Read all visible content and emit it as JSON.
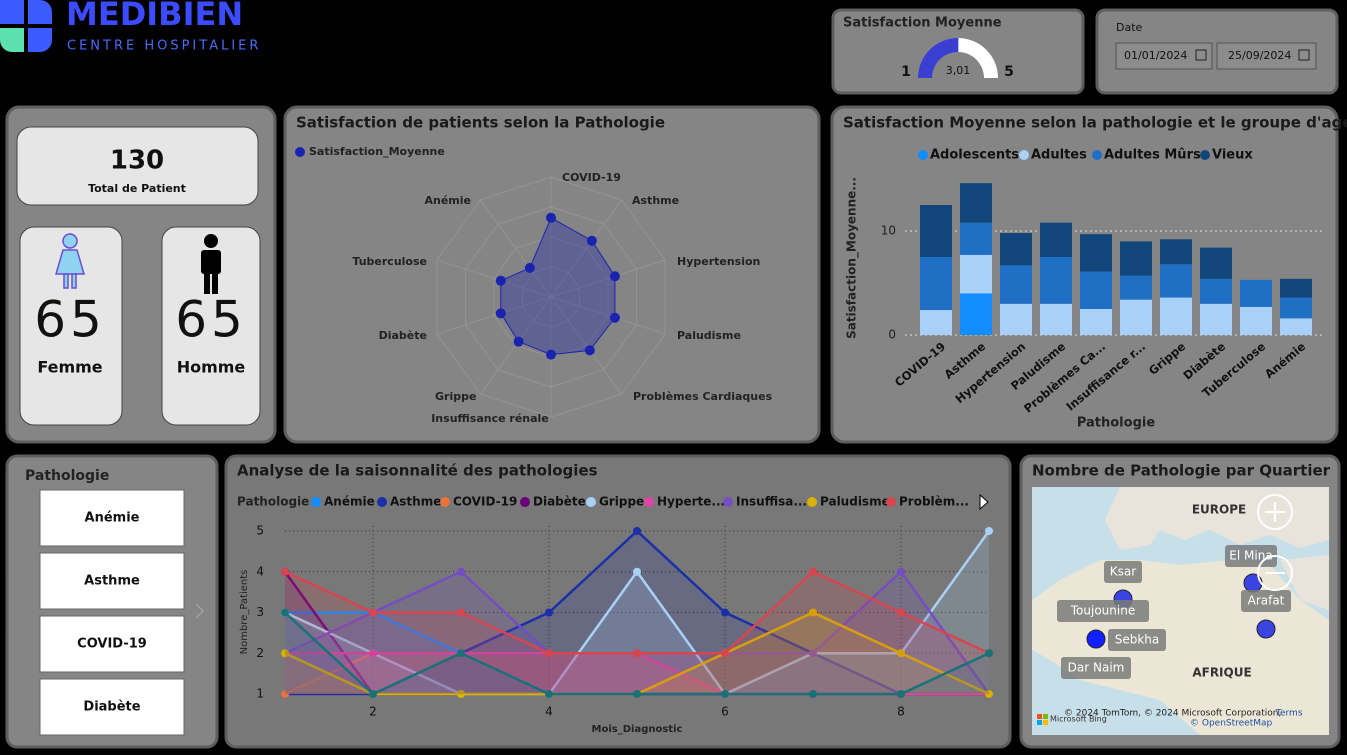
{
  "header": {
    "brand": "MEDIBIEN",
    "subtitle": "CENTRE HOSPITALIER"
  },
  "gauge": {
    "title": "Satisfaction Moyenne",
    "min": 1,
    "max": 5,
    "value": 3.01,
    "value_label": "3,01"
  },
  "date": {
    "label": "Date",
    "start": "01/01/2024",
    "end": "25/09/2024"
  },
  "kpis": {
    "total": {
      "value": 130,
      "label": "Total de Patient"
    },
    "femme": {
      "value": 65,
      "label": "Femme"
    },
    "homme": {
      "value": 65,
      "label": "Homme"
    }
  },
  "slicer": {
    "title": "Pathologie",
    "items": [
      "Anémie",
      "Asthme",
      "COVID-19",
      "Diabète"
    ]
  },
  "map": {
    "title": "Nombre de Pathologie par Quartier",
    "regions": [
      "EUROPE",
      "AFRIQUE"
    ],
    "places": [
      "Ksar",
      "Toujounine",
      "Sebkha",
      "Dar Naim",
      "El Mina",
      "Arafat"
    ],
    "attribution": "© 2024 TomTom, © 2024 Microsoft Corporation,",
    "terms": "Terms",
    "osm": "© OpenStreetMap",
    "provider": "Microsoft Bing"
  },
  "chart_data": [
    {
      "type": "radar",
      "title": "Satisfaction de patients selon la Pathologie",
      "categories": [
        "COVID-19",
        "Asthme",
        "Hypertension",
        "Paludisme",
        "Problèmes Cardiaques",
        "Insuffisance rénale",
        "Grippe",
        "Diabète",
        "Tuberculose",
        "Anémie"
      ],
      "series": [
        {
          "name": "Satisfaction_Moyenne",
          "color": "#1a23b0",
          "values": [
            3.3,
            2.9,
            2.8,
            2.8,
            2.75,
            2.4,
            2.3,
            2.2,
            2.2,
            1.5
          ]
        }
      ],
      "rlim": [
        0,
        5
      ]
    },
    {
      "type": "stacked-bar",
      "title": "Satisfaction Moyenne selon la pathologie et le groupe d'age",
      "categories": [
        "COVID-19",
        "Asthme",
        "Hypertension",
        "Paludisme",
        "Problèmes Ca...",
        "Insuffisance r...",
        "Grippe",
        "Diabète",
        "Tuberculose",
        "Anémie"
      ],
      "series": [
        {
          "name": "Adolescents",
          "color": "#118dff",
          "values": [
            0,
            4.0,
            0,
            0,
            0,
            0,
            0,
            0,
            0,
            0
          ]
        },
        {
          "name": "Adultes",
          "color": "#a9d1f7",
          "values": [
            2.4,
            3.7,
            3.0,
            3.0,
            2.5,
            3.4,
            3.6,
            3.0,
            2.7,
            1.6
          ]
        },
        {
          "name": "Adultes Mûrs",
          "color": "#1f6fc5",
          "values": [
            5.1,
            3.1,
            3.7,
            4.5,
            3.6,
            2.3,
            3.2,
            2.4,
            2.6,
            2.0
          ]
        },
        {
          "name": "Vieux",
          "color": "#12467b",
          "values": [
            5.0,
            3.8,
            3.1,
            3.3,
            3.6,
            3.3,
            2.4,
            3.0,
            0,
            1.8
          ]
        }
      ],
      "ylim": [
        0,
        15
      ],
      "yticks": [
        0,
        10
      ],
      "grid": true,
      "x_label": "Pathologie",
      "y_label": "Satisfaction_Moyenne..."
    },
    {
      "type": "line",
      "title": "Analyse de la saisonnalité des pathologies",
      "legend_title": "Pathologie",
      "x": [
        1,
        2,
        3,
        4,
        5,
        6,
        7,
        8,
        9
      ],
      "series": [
        {
          "name": "Anémie",
          "color": "#118dff",
          "values": [
            3,
            3,
            2,
            1,
            1,
            1,
            2,
            2,
            1
          ]
        },
        {
          "name": "Asthme",
          "color": "#1a2fa8",
          "values": [
            1,
            1,
            2,
            3,
            5,
            3,
            2,
            1,
            1
          ]
        },
        {
          "name": "COVID-19",
          "color": "#e8743b",
          "values": [
            1,
            2,
            2,
            2,
            2,
            1,
            1,
            1,
            1
          ]
        },
        {
          "name": "Diabète",
          "color": "#6b007b",
          "values": [
            4,
            1,
            1,
            1,
            1,
            1,
            1,
            1,
            1
          ]
        },
        {
          "name": "Grippe",
          "color": "#a9d1f7",
          "values": [
            3,
            2,
            1,
            1,
            4,
            1,
            2,
            2,
            5
          ]
        },
        {
          "name": "Hyperte...",
          "color": "#e044a7",
          "values": [
            2,
            2,
            2,
            2,
            2,
            1,
            1,
            1,
            1
          ]
        },
        {
          "name": "Insuffisa...",
          "color": "#744ec2",
          "values": [
            2,
            3,
            4,
            2,
            2,
            2,
            2,
            4,
            1
          ]
        },
        {
          "name": "Paludisme",
          "color": "#d9b300",
          "values": [
            2,
            1,
            1,
            1,
            1,
            2,
            3,
            2,
            1
          ]
        },
        {
          "name": "Problèm...",
          "color": "#d64550",
          "values": [
            4,
            3,
            3,
            2,
            2,
            2,
            4,
            3,
            2
          ]
        },
        {
          "color": "#197278",
          "values": [
            3,
            1,
            2,
            1,
            1,
            1,
            1,
            1,
            2
          ]
        }
      ],
      "xlim": [
        1,
        9
      ],
      "xticks": [
        2,
        4,
        6,
        8
      ],
      "ylim": [
        1,
        5
      ],
      "yticks": [
        1,
        2,
        3,
        4,
        5
      ],
      "grid": true,
      "x_label": "Mois_Diagnostic",
      "y_label": "Nombre_Patients"
    }
  ]
}
